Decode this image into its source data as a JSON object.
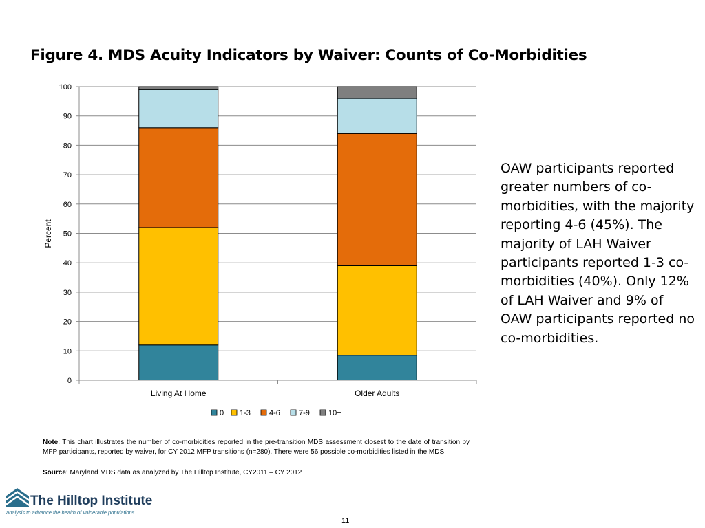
{
  "title": "Figure 4. MDS Acuity Indicators by Waiver: Counts of Co-Morbidities",
  "callout": "OAW participants reported greater numbers of co-morbidities, with the majority reporting 4-6 (45%). The majority of LAH Waiver participants reported 1-3 co-morbidities (40%). Only 12% of LAH Waiver and 9% of OAW participants reported no co-morbidities.",
  "note": {
    "label": "Note",
    "text": ": This chart illustrates the number of co-morbidities reported in the pre-transition MDS assessment closest to the date of transition by MFP participants, reported by waiver, for CY 2012 MFP transitions (n=280).  There were 56 possible co-morbidities listed in the MDS."
  },
  "source": {
    "label": "Source",
    "text": ": Maryland MDS data as analyzed by The Hilltop Institute, CY2011 – CY 2012"
  },
  "logo": {
    "name": "The Hilltop Institute",
    "tagline": "analysis to advance the health of vulnerable populations"
  },
  "page_number": "11",
  "colors": {
    "0": "#31849b",
    "1-3": "#ffc000",
    "4-6": "#e46c0a",
    "7-9": "#b7dee8",
    "10+": "#7f7f7f",
    "grid": "#8c8c8c",
    "logo_dark": "#1f3d5c",
    "logo_teal": "#2a6e8c"
  },
  "chart_data": {
    "type": "bar",
    "stacked": true,
    "categories": [
      "Living At Home",
      "Older Adults"
    ],
    "series": [
      {
        "name": "0",
        "values": [
          12,
          8.5
        ]
      },
      {
        "name": "1-3",
        "values": [
          40,
          30.5
        ]
      },
      {
        "name": "4-6",
        "values": [
          34,
          45
        ]
      },
      {
        "name": "7-9",
        "values": [
          13,
          12
        ]
      },
      {
        "name": "10+",
        "values": [
          1,
          4
        ]
      }
    ],
    "ylabel": "Percent",
    "xlabel": "",
    "ylim": [
      0,
      100
    ],
    "yticks": [
      0,
      10,
      20,
      30,
      40,
      50,
      60,
      70,
      80,
      90,
      100
    ],
    "grid": true,
    "legend": "bottom"
  }
}
